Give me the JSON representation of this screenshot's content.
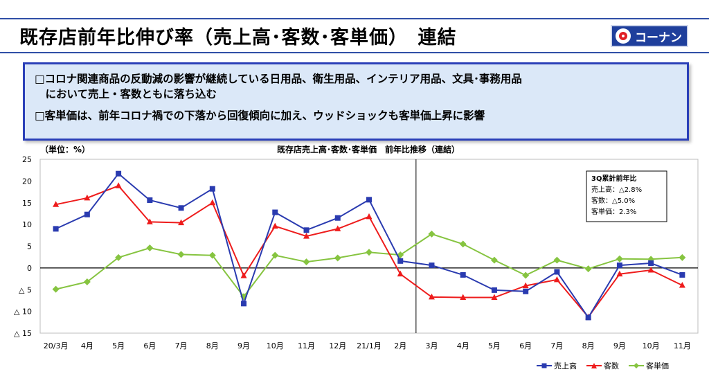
{
  "header": {
    "title": "既存店前年比伸び率（売上高･客数･客単価）　連結",
    "logo_text": "コーナン"
  },
  "notes": [
    "□コロナ関連商品の反動減の影響が継続している日用品、衛生用品、インテリア用品、文具･事務用品",
    "　において売上・客数ともに落ち込む",
    "□客単価は、前年コロナ禍での下落から回復傾向に加え、ウッドショックも客単価上昇に影響"
  ],
  "chart_data": {
    "type": "line",
    "title": "既存店売上高･客数･客単価　前年比推移（連結）",
    "unit_label": "（単位：%）",
    "categories": [
      "20/3月",
      "4月",
      "5月",
      "6月",
      "7月",
      "8月",
      "9月",
      "10月",
      "11月",
      "12月",
      "21/1月",
      "2月",
      "3月",
      "4月",
      "5月",
      "6月",
      "7月",
      "8月",
      "9月",
      "10月",
      "11月"
    ],
    "ylim": [
      -15,
      25
    ],
    "yticks": [
      25,
      20,
      15,
      10,
      5,
      0,
      -5,
      -10,
      -15
    ],
    "ytick_labels": [
      "25",
      "20",
      "15",
      "10",
      "5",
      "0",
      "△ 5",
      "△ 10",
      "△ 15"
    ],
    "divider_after_category": "2月",
    "series": [
      {
        "name": "売上高",
        "color": "#2a3bb0",
        "marker": "square",
        "values": [
          9.0,
          12.3,
          21.7,
          15.6,
          13.8,
          18.2,
          -8.2,
          12.8,
          8.7,
          11.5,
          15.7,
          1.6,
          0.6,
          -1.6,
          -5.1,
          -5.4,
          -0.9,
          -11.4,
          0.6,
          1.1,
          -1.6
        ]
      },
      {
        "name": "客数",
        "color": "#ee1c1c",
        "marker": "triangle",
        "values": [
          14.6,
          16.1,
          18.9,
          10.6,
          10.4,
          15.0,
          -1.8,
          9.6,
          7.3,
          9.0,
          11.8,
          -1.4,
          -6.7,
          -6.8,
          -6.8,
          -4.1,
          -2.7,
          -11.3,
          -1.4,
          -0.5,
          -4.0
        ]
      },
      {
        "name": "客単価",
        "color": "#86c440",
        "marker": "diamond",
        "values": [
          -4.9,
          -3.2,
          2.4,
          4.6,
          3.1,
          2.9,
          -6.6,
          2.9,
          1.4,
          2.3,
          3.6,
          3.0,
          7.8,
          5.5,
          1.8,
          -1.7,
          1.8,
          -0.2,
          2.1,
          2.0,
          2.4
        ]
      }
    ],
    "annotation": {
      "title": "3Q累計前年比",
      "lines": [
        "売上高：△2.8%",
        "客数：△5.0%",
        "客単価：2.3%"
      ]
    },
    "legend_position": "bottom-right"
  }
}
